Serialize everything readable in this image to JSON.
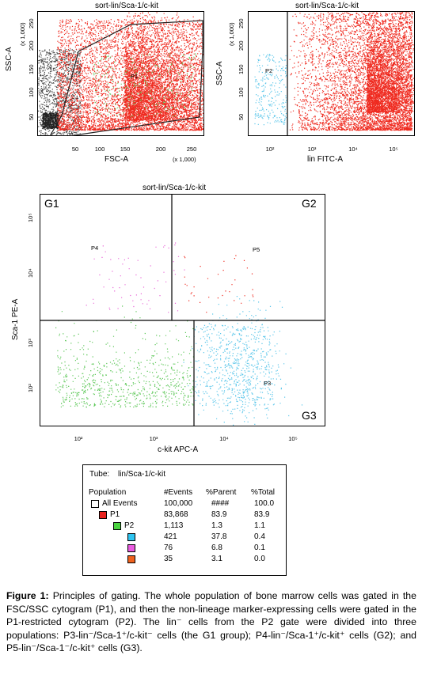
{
  "top_left_plot": {
    "title": "sort-lin/Sca-1/c-kit",
    "xlabel": "FSC-A",
    "ylabel": "SSC-A",
    "xscale_note": "(x 1,000)",
    "yscale_note": "(x 1,000)",
    "xticks": [
      "50",
      "100",
      "150",
      "200",
      "250"
    ],
    "yticks": [
      "50",
      "100",
      "150",
      "200",
      "250"
    ],
    "gate_label": "P1"
  },
  "top_right_plot": {
    "title": "sort-lin/Sca-1/c-kit",
    "xlabel": "lin FITC-A",
    "ylabel": "SSC-A",
    "yscale_note": "(x 1,000)",
    "xticks": [
      "10²",
      "10³",
      "10⁴",
      "10⁵"
    ],
    "yticks": [
      "50",
      "100",
      "150",
      "200",
      "250"
    ],
    "gate_label": "P2"
  },
  "bottom_plot": {
    "title": "sort-lin/Sca-1/c-kit",
    "xlabel": "c-kit APC-A",
    "ylabel": "Sca-1 PE-A",
    "xticks": [
      "10²",
      "10³",
      "10⁴",
      "10⁵"
    ],
    "yticks": [
      "10²",
      "10³",
      "10⁴",
      "10⁵"
    ],
    "quadrants": [
      "G1",
      "G2",
      "G3"
    ],
    "gate_labels": [
      "P4",
      "P5",
      "P3"
    ]
  },
  "table": {
    "tube_label": "Tube:",
    "tube_value": "lin/Sca-1/c-kit",
    "columns": [
      "Population",
      "#Events",
      "%Parent",
      "%Total"
    ],
    "rows": [
      {
        "name": "All Events",
        "events": "100,000",
        "parent": "####",
        "total": "100.0",
        "color": "#ffffff"
      },
      {
        "name": "P1",
        "events": "83,868",
        "parent": "83.9",
        "total": "83.9",
        "color": "#e8231e"
      },
      {
        "name": "P2",
        "events": "1,113",
        "parent": "1.3",
        "total": "1.1",
        "color": "#4ad340"
      },
      {
        "name": "",
        "events": "421",
        "parent": "37.8",
        "total": "0.4",
        "color": "#2fc4f0"
      },
      {
        "name": "",
        "events": "76",
        "parent": "6.8",
        "total": "0.1",
        "color": "#e95be0"
      },
      {
        "name": "",
        "events": "35",
        "parent": "3.1",
        "total": "0.0",
        "color": "#f0621e"
      }
    ]
  },
  "caption": {
    "label": "Figure 1:",
    "text": "Principles of gating. The whole population of bone marrow cells was gated in the FSC/SSC cytogram (P1), and then the non-lineage marker-expressing cells were gated in the P1-restricted cytogram (P2). The lin⁻ cells from the P2 gate were divided into three populations: P3-lin⁻/Sca-1⁺/c-kit⁻ cells (the G1 group); P4-lin⁻/Sca-1⁺/c-kit⁺ cells (G2); and P5-lin⁻/Sca-1⁻/c-kit⁺ cells (G3)."
  },
  "colors": {
    "red": "#ef2a1f",
    "green": "#5fc85a",
    "cyan": "#5bc6ea",
    "pink": "#e96ad8",
    "gray": "#444444"
  }
}
